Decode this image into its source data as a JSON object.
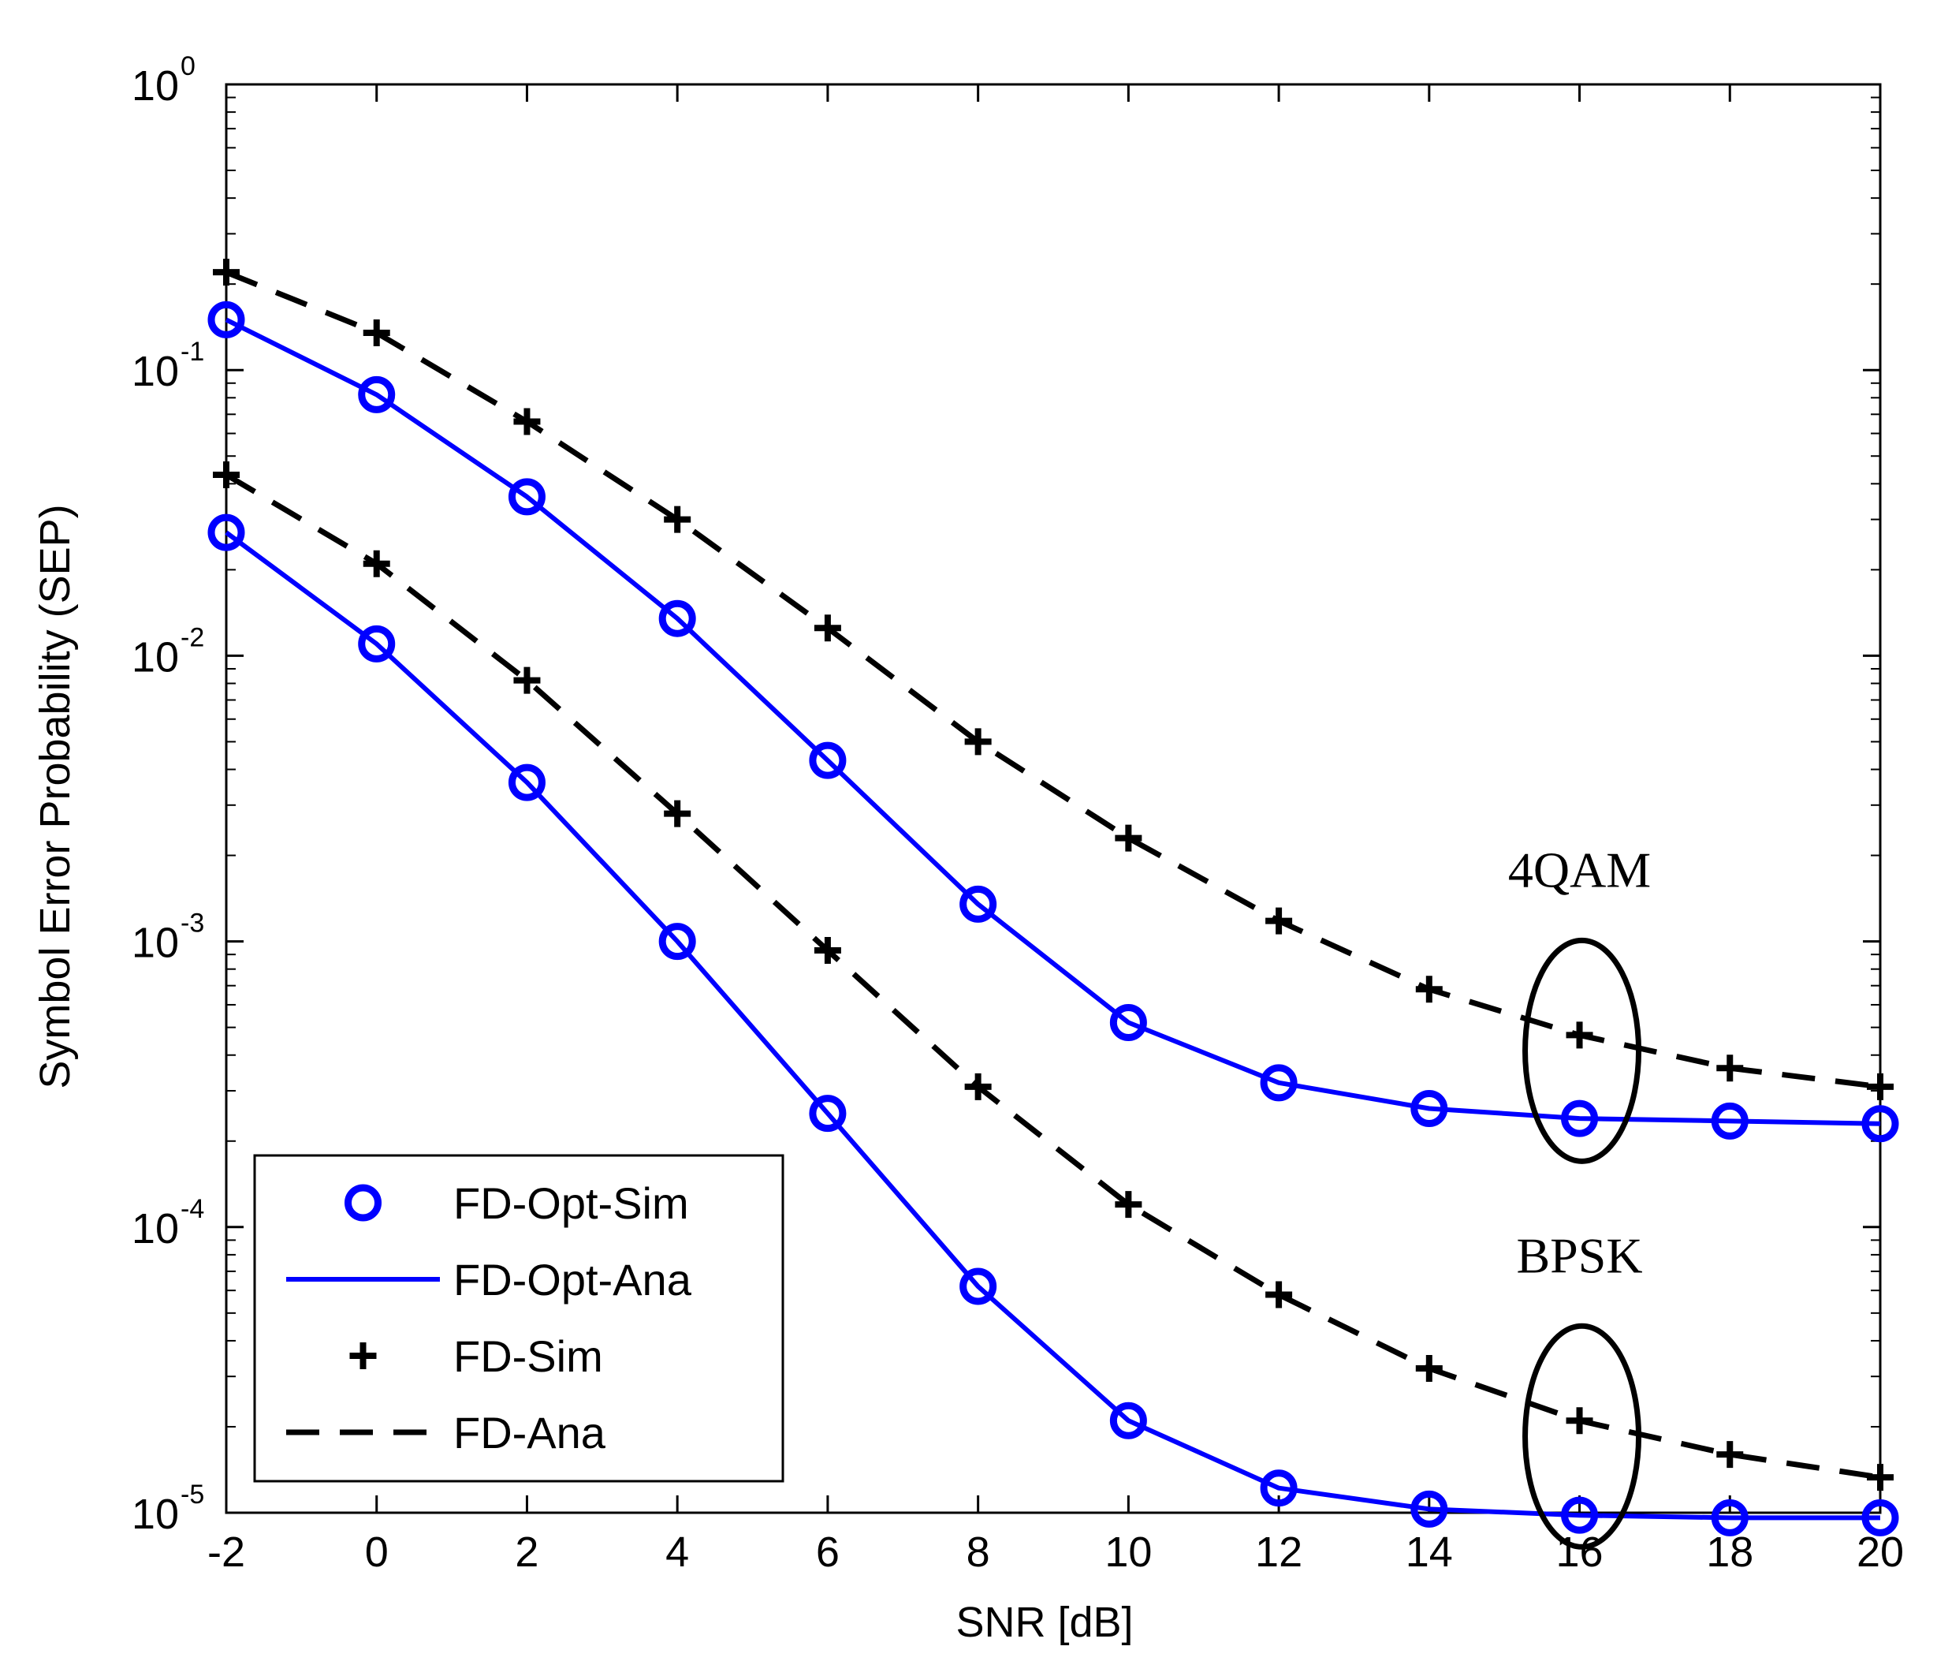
{
  "chart_data": {
    "type": "line",
    "title": "",
    "xlabel": "SNR [dB]",
    "ylabel": "Symbol Error Probability (SEP)",
    "xlim": [
      -2,
      20
    ],
    "ylim": [
      1e-05,
      1
    ],
    "yscale": "log",
    "x_ticks": [
      -2,
      0,
      2,
      4,
      6,
      8,
      10,
      12,
      14,
      16,
      18,
      20
    ],
    "x_tick_labels": [
      "-2",
      "0",
      "2",
      "4",
      "6",
      "8",
      "10",
      "12",
      "14",
      "16",
      "18",
      "20"
    ],
    "y_ticks": [
      {
        "value": 1e-05,
        "base": "10",
        "exp": "-5"
      },
      {
        "value": 0.0001,
        "base": "10",
        "exp": "-4"
      },
      {
        "value": 0.001,
        "base": "10",
        "exp": "-3"
      },
      {
        "value": 0.01,
        "base": "10",
        "exp": "-2"
      },
      {
        "value": 0.1,
        "base": "10",
        "exp": "-1"
      },
      {
        "value": 1,
        "base": "10",
        "exp": "0"
      }
    ],
    "grid": false,
    "legend_position": "bottom-left",
    "x": [
      -2,
      0,
      2,
      4,
      6,
      8,
      10,
      12,
      14,
      16,
      18,
      20
    ],
    "series": [
      {
        "name": "FD-Opt-Sim",
        "group": "4QAM",
        "style": "marker-circle",
        "color": "#0000ff",
        "values": [
          0.15,
          0.082,
          0.036,
          0.0135,
          0.0043,
          0.00135,
          0.00052,
          0.00032,
          0.00026,
          0.00024,
          0.000235,
          0.00023
        ]
      },
      {
        "name": "FD-Opt-Ana",
        "group": "4QAM",
        "style": "solid",
        "color": "#0000ff",
        "values": [
          0.15,
          0.082,
          0.036,
          0.0135,
          0.0043,
          0.00135,
          0.00052,
          0.00032,
          0.00026,
          0.00024,
          0.000235,
          0.00023
        ]
      },
      {
        "name": "FD-Sim",
        "group": "4QAM",
        "style": "marker-plus",
        "color": "#000000",
        "values": [
          0.22,
          0.135,
          0.066,
          0.03,
          0.0125,
          0.005,
          0.0023,
          0.00118,
          0.00068,
          0.00047,
          0.00036,
          0.00031
        ]
      },
      {
        "name": "FD-Ana",
        "group": "4QAM",
        "style": "dashed",
        "color": "#000000",
        "values": [
          0.22,
          0.135,
          0.066,
          0.03,
          0.0125,
          0.005,
          0.0023,
          0.00118,
          0.00068,
          0.00047,
          0.00036,
          0.00031
        ]
      },
      {
        "name": "FD-Opt-Sim",
        "group": "BPSK",
        "style": "marker-circle",
        "color": "#0000ff",
        "values": [
          0.027,
          0.011,
          0.0036,
          0.001,
          0.00025,
          6.2e-05,
          2.1e-05,
          1.22e-05,
          1.03e-05,
          9.8e-06,
          9.6e-06,
          9.6e-06
        ]
      },
      {
        "name": "FD-Opt-Ana",
        "group": "BPSK",
        "style": "solid",
        "color": "#0000ff",
        "values": [
          0.027,
          0.011,
          0.0036,
          0.001,
          0.00025,
          6.2e-05,
          2.1e-05,
          1.22e-05,
          1.03e-05,
          9.8e-06,
          9.6e-06,
          9.6e-06
        ]
      },
      {
        "name": "FD-Sim",
        "group": "BPSK",
        "style": "marker-plus",
        "color": "#000000",
        "values": [
          0.043,
          0.021,
          0.0082,
          0.0028,
          0.00093,
          0.00031,
          0.00012,
          5.8e-05,
          3.2e-05,
          2.1e-05,
          1.6e-05,
          1.33e-05
        ]
      },
      {
        "name": "FD-Ana",
        "group": "BPSK",
        "style": "dashed",
        "color": "#000000",
        "values": [
          0.043,
          0.021,
          0.0082,
          0.0028,
          0.00093,
          0.00031,
          0.00012,
          5.8e-05,
          3.2e-05,
          2.1e-05,
          1.6e-05,
          1.33e-05
        ]
      }
    ],
    "legend": [
      {
        "label": "FD-Opt-Sim",
        "style": "marker-circle",
        "color": "#0000ff"
      },
      {
        "label": "FD-Opt-Ana",
        "style": "solid",
        "color": "#0000ff"
      },
      {
        "label": "FD-Sim",
        "style": "marker-plus",
        "color": "#000000"
      },
      {
        "label": "FD-Ana",
        "style": "dashed",
        "color": "#000000"
      }
    ],
    "annotations": [
      {
        "text": "4QAM",
        "x": 16,
        "y": 0.00047,
        "shape": "ellipse"
      },
      {
        "text": "BPSK",
        "x": 16,
        "y": 2.1e-05,
        "shape": "ellipse"
      }
    ]
  }
}
